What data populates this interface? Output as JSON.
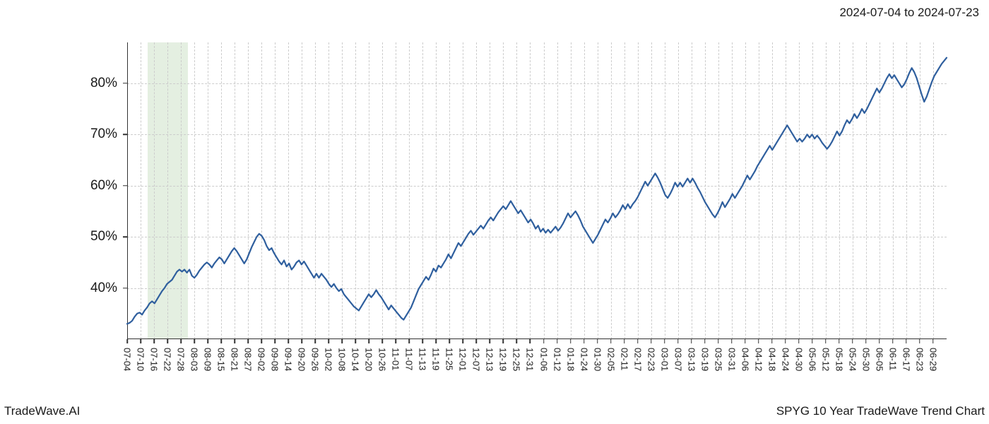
{
  "date_range_label": "2024-07-04 to 2024-07-23",
  "footer_left": "TradeWave.AI",
  "footer_right": "SPYG 10 Year TradeWave Trend Chart",
  "chart": {
    "type": "line",
    "background_color": "#ffffff",
    "grid_color": "#cccccc",
    "axis_color": "#333333",
    "line_color": "#2f5f9e",
    "line_width": 2.2,
    "highlight_band_color": "#c9e0c4",
    "highlight_band_opacity": 0.5,
    "highlight_band": {
      "x_start": 1.5,
      "x_end": 4.5
    },
    "ylim": [
      30,
      88
    ],
    "yticks": [
      40,
      50,
      60,
      70,
      80
    ],
    "ytick_labels": [
      "40%",
      "50%",
      "60%",
      "70%",
      "80%"
    ],
    "ylabel_fontsize": 19,
    "xlim": [
      0,
      61
    ],
    "xtick_labels": [
      "07-04",
      "07-10",
      "07-16",
      "07-22",
      "07-28",
      "08-03",
      "08-09",
      "08-15",
      "08-21",
      "08-27",
      "09-02",
      "09-08",
      "09-14",
      "09-20",
      "09-26",
      "10-02",
      "10-08",
      "10-14",
      "10-20",
      "10-26",
      "11-01",
      "11-07",
      "11-13",
      "11-19",
      "11-25",
      "12-01",
      "12-07",
      "12-13",
      "12-19",
      "12-25",
      "12-31",
      "01-06",
      "01-12",
      "01-18",
      "01-24",
      "01-30",
      "02-05",
      "02-11",
      "02-17",
      "02-23",
      "03-01",
      "03-07",
      "03-13",
      "03-19",
      "03-25",
      "03-31",
      "04-06",
      "04-12",
      "04-18",
      "04-24",
      "04-30",
      "05-06",
      "05-12",
      "05-18",
      "05-24",
      "05-30",
      "06-05",
      "06-11",
      "06-17",
      "06-23",
      "06-29"
    ],
    "xlabel_fontsize": 13,
    "series": [
      33.0,
      33.2,
      33.6,
      34.4,
      35.0,
      35.2,
      34.8,
      35.6,
      36.2,
      37.0,
      37.4,
      37.0,
      37.8,
      38.6,
      39.4,
      40.0,
      40.8,
      41.2,
      41.6,
      42.4,
      43.2,
      43.6,
      43.2,
      43.6,
      43.0,
      43.6,
      42.4,
      42.0,
      42.6,
      43.4,
      44.0,
      44.6,
      45.0,
      44.6,
      44.0,
      44.8,
      45.4,
      46.0,
      45.6,
      44.8,
      45.6,
      46.4,
      47.2,
      47.8,
      47.2,
      46.4,
      45.6,
      44.8,
      45.6,
      46.8,
      48.0,
      49.0,
      50.0,
      50.6,
      50.2,
      49.4,
      48.2,
      47.4,
      47.8,
      46.8,
      46.0,
      45.2,
      44.6,
      45.4,
      44.2,
      44.8,
      43.6,
      44.2,
      45.0,
      45.4,
      44.6,
      45.2,
      44.4,
      43.6,
      42.8,
      42.0,
      42.8,
      42.0,
      42.8,
      42.2,
      41.6,
      40.8,
      40.2,
      40.8,
      40.0,
      39.4,
      39.8,
      38.8,
      38.2,
      37.6,
      37.0,
      36.4,
      36.0,
      35.6,
      36.4,
      37.2,
      38.0,
      38.8,
      38.2,
      38.8,
      39.6,
      38.8,
      38.2,
      37.4,
      36.6,
      35.8,
      36.6,
      36.0,
      35.4,
      34.8,
      34.2,
      33.8,
      34.6,
      35.4,
      36.2,
      37.4,
      38.6,
      39.8,
      40.6,
      41.4,
      42.2,
      41.6,
      42.6,
      43.8,
      43.2,
      44.4,
      44.0,
      44.8,
      45.6,
      46.6,
      45.8,
      46.8,
      47.8,
      48.8,
      48.2,
      49.0,
      49.8,
      50.6,
      51.2,
      50.4,
      51.0,
      51.6,
      52.2,
      51.6,
      52.4,
      53.2,
      53.8,
      53.2,
      54.0,
      54.8,
      55.4,
      56.0,
      55.4,
      56.2,
      57.0,
      56.2,
      55.4,
      54.6,
      55.2,
      54.4,
      53.6,
      52.8,
      53.4,
      52.6,
      51.6,
      52.2,
      51.0,
      51.6,
      50.8,
      51.4,
      50.8,
      51.4,
      52.0,
      51.2,
      51.8,
      52.6,
      53.6,
      54.6,
      53.8,
      54.4,
      55.0,
      54.2,
      53.2,
      52.0,
      51.2,
      50.4,
      49.6,
      48.8,
      49.6,
      50.4,
      51.4,
      52.4,
      53.4,
      52.8,
      53.6,
      54.6,
      53.8,
      54.4,
      55.2,
      56.2,
      55.4,
      56.4,
      55.6,
      56.4,
      57.0,
      57.8,
      58.8,
      59.8,
      60.8,
      60.0,
      60.8,
      61.6,
      62.4,
      61.6,
      60.6,
      59.4,
      58.2,
      57.6,
      58.4,
      59.4,
      60.6,
      59.8,
      60.6,
      59.8,
      60.6,
      61.4,
      60.6,
      61.4,
      60.6,
      59.6,
      58.8,
      57.8,
      56.8,
      56.0,
      55.2,
      54.4,
      53.8,
      54.6,
      55.6,
      56.8,
      55.8,
      56.6,
      57.4,
      58.4,
      57.6,
      58.4,
      59.2,
      60.0,
      61.0,
      62.0,
      61.2,
      62.0,
      62.8,
      63.8,
      64.6,
      65.4,
      66.2,
      67.0,
      67.8,
      67.0,
      67.8,
      68.6,
      69.4,
      70.2,
      71.0,
      71.8,
      71.0,
      70.2,
      69.4,
      68.6,
      69.2,
      68.6,
      69.2,
      70.0,
      69.4,
      70.0,
      69.2,
      69.8,
      69.2,
      68.4,
      67.8,
      67.2,
      67.8,
      68.6,
      69.6,
      70.6,
      69.8,
      70.6,
      71.8,
      72.8,
      72.2,
      73.0,
      74.0,
      73.2,
      74.0,
      75.0,
      74.2,
      75.0,
      76.0,
      77.0,
      78.0,
      79.0,
      78.2,
      79.0,
      80.0,
      81.0,
      81.8,
      81.0,
      81.6,
      80.8,
      80.0,
      79.2,
      79.8,
      80.8,
      82.0,
      83.0,
      82.2,
      81.0,
      79.4,
      77.8,
      76.4,
      77.4,
      78.8,
      80.2,
      81.4,
      82.2,
      83.0,
      83.8,
      84.4,
      85.0
    ],
    "x_count": 320
  }
}
